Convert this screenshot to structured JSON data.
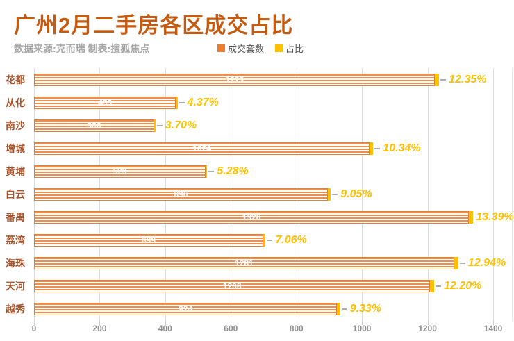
{
  "header": {
    "title": "广州2月二手房各区成交占比",
    "subtitle": "数据来源:克而瑞  制表:搜狐焦点"
  },
  "legend": [
    {
      "label": "成交套数",
      "color": "#ED7D31"
    },
    {
      "label": "占比",
      "color": "#FFC000"
    }
  ],
  "chart_data": {
    "type": "bar",
    "orientation": "horizontal",
    "title": "广州2月二手房各区成交占比",
    "categories": [
      "花都",
      "从化",
      "南沙",
      "增城",
      "黄埔",
      "白云",
      "番禺",
      "荔湾",
      "海珠",
      "天河",
      "越秀"
    ],
    "series": [
      {
        "name": "成交套数",
        "color": "#ED7D31",
        "values": [
          1223,
          433,
          366,
          1024,
          523,
          896,
          1326,
          699,
          1281,
          1208,
          924
        ]
      },
      {
        "name": "占比",
        "color": "#FFC000",
        "values": [
          12.35,
          4.37,
          3.7,
          10.34,
          5.28,
          9.05,
          13.39,
          7.06,
          12.94,
          12.2,
          9.33
        ],
        "labels": [
          "12.35%",
          "4.37%",
          "3.70%",
          "10.34%",
          "5.28%",
          "9.05%",
          "13.39%",
          "7.06%",
          "12.94%",
          "12.20%",
          "9.33%"
        ]
      }
    ],
    "xlabel": "",
    "ylabel": "",
    "xlim": [
      0,
      1400
    ],
    "x_ticks": [
      0,
      200,
      400,
      600,
      800,
      1000,
      1200,
      1400
    ],
    "grid": true,
    "legend_position": "top"
  },
  "colors": {
    "title": "#C55A11",
    "subtitle": "#A6A6A6",
    "bar_fill": "#EE8F4D",
    "bar_border": "#E67E33",
    "bar_value_text": "#FFFFFF",
    "pct_text": "#FFC000",
    "category_text": "#A5542C",
    "gridline": "#DCDCDC",
    "axis_text": "#8F8F8F"
  }
}
